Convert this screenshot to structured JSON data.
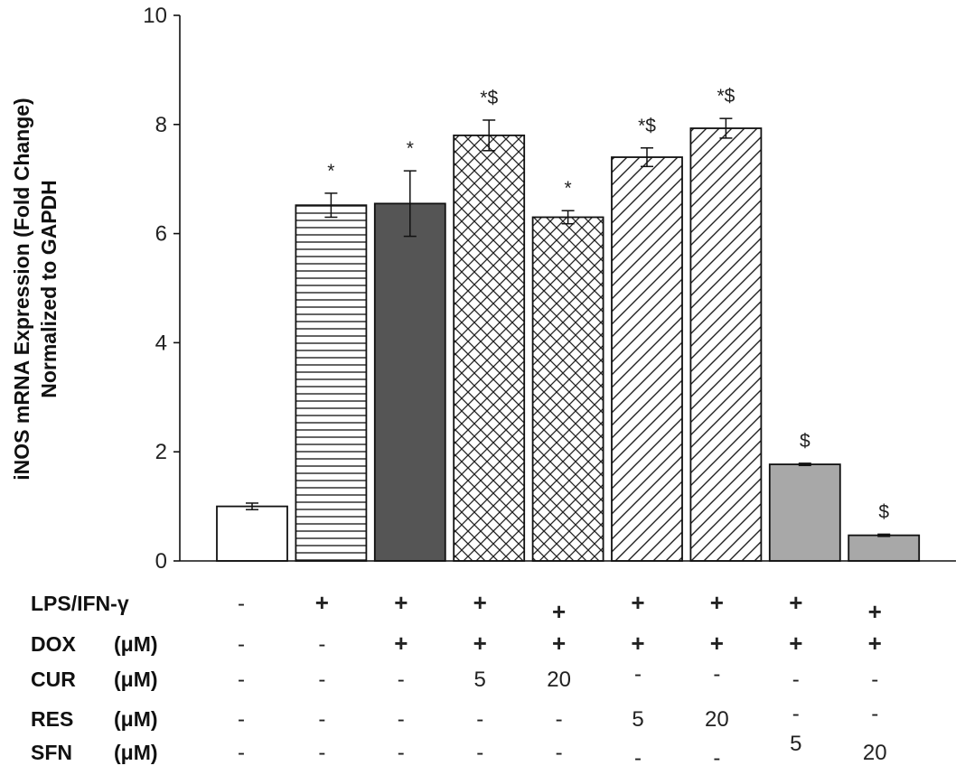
{
  "chart_data": {
    "type": "bar",
    "ylabel_line1": "iNOS mRNA Expression (Fold Change)",
    "ylabel_line2": "Normalized to GAPDH",
    "ylim": [
      0,
      10
    ],
    "yticks": [
      "0",
      "2",
      "4",
      "6",
      "8",
      "10"
    ],
    "grid": false,
    "bars": [
      {
        "value": 1.0,
        "error": 0.06,
        "pattern": "white",
        "marker": ""
      },
      {
        "value": 6.52,
        "error": 0.22,
        "pattern": "horizontal",
        "marker": "*"
      },
      {
        "value": 6.55,
        "error": 0.6,
        "pattern": "dark",
        "marker": "*"
      },
      {
        "value": 7.8,
        "error": 0.28,
        "pattern": "crosshatch",
        "marker": "*$"
      },
      {
        "value": 6.3,
        "error": 0.12,
        "pattern": "crosshatch",
        "marker": "*"
      },
      {
        "value": 7.4,
        "error": 0.17,
        "pattern": "diagonal",
        "marker": "*$"
      },
      {
        "value": 7.93,
        "error": 0.18,
        "pattern": "diagonal",
        "marker": "*$"
      },
      {
        "value": 1.77,
        "error": 0.02,
        "pattern": "gray",
        "marker": "$"
      },
      {
        "value": 0.47,
        "error": 0.02,
        "pattern": "gray",
        "marker": "$"
      }
    ],
    "treatments": [
      {
        "label": "LPS/IFN-γ",
        "unit": "",
        "values": [
          "-",
          "+",
          "+",
          "+",
          "+",
          "+",
          "+",
          "+",
          "+"
        ]
      },
      {
        "label": "DOX",
        "unit": "(μM)",
        "values": [
          "-",
          "-",
          "+",
          "+",
          "+",
          "+",
          "+",
          "+",
          "+"
        ]
      },
      {
        "label": "CUR",
        "unit": "(μM)",
        "values": [
          "-",
          "-",
          "-",
          "5",
          "20",
          "-",
          "-",
          "-",
          "-"
        ]
      },
      {
        "label": "RES",
        "unit": "(μM)",
        "values": [
          "-",
          "-",
          "-",
          "-",
          "-",
          "5",
          "20",
          "-",
          "-"
        ]
      },
      {
        "label": "SFN",
        "unit": "(μM)",
        "values": [
          "-",
          "-",
          "-",
          "-",
          "-",
          "-",
          "-",
          "5",
          "20"
        ]
      }
    ],
    "colors": {
      "dark": "#555555",
      "gray": "#a8a8a8",
      "stroke": "#111111"
    }
  }
}
